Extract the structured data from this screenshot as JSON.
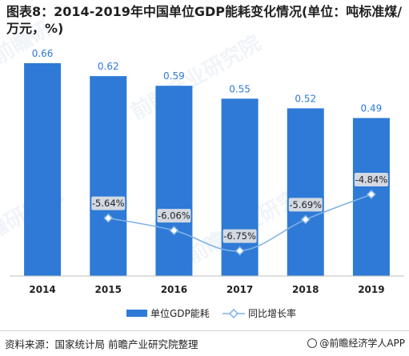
{
  "title": "图表8：2014-2019年中国单位GDP能耗变化情况(单位：吨标准煤/万元，%)",
  "source": "资料来源：国家统计局 前瞻产业研究院整理",
  "brand": "@前瞻经济学人APP",
  "colors": {
    "bar": "#2e7ad6",
    "line": "#7fb2e6",
    "label_box": "#d3d9e2",
    "bar_label": "#2e7ad6"
  },
  "chart_data": {
    "type": "bar",
    "categories": [
      "2014",
      "2015",
      "2016",
      "2017",
      "2018",
      "2019"
    ],
    "series": [
      {
        "name": "单位GDP能耗",
        "type": "bar",
        "values": [
          0.66,
          0.62,
          0.59,
          0.55,
          0.52,
          0.49
        ],
        "labels": [
          "0.66",
          "0.62",
          "0.59",
          "0.55",
          "0.52",
          "0.49"
        ]
      },
      {
        "name": "同比增长率",
        "type": "line",
        "values": [
          null,
          -5.64,
          -6.06,
          -6.75,
          -5.69,
          -4.84
        ],
        "labels": [
          "",
          "-5.64%",
          "-6.06%",
          "-6.75%",
          "-5.69%",
          "-4.84%"
        ]
      }
    ],
    "bar_ylim": [
      0,
      0.7
    ],
    "line_ylim": [
      -7.6,
      -3.0
    ],
    "legend_position": "bottom",
    "grid": false
  }
}
